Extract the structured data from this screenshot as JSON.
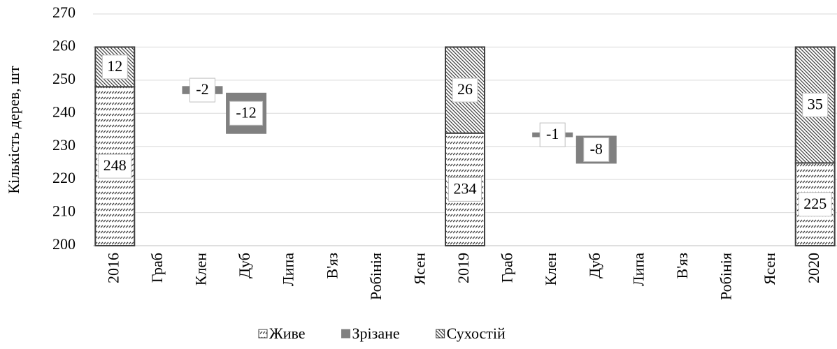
{
  "chart_data": {
    "type": "waterfall",
    "y_label": "Кількість дерев, шт",
    "categories": [
      "2016",
      "Граб",
      "Клен",
      "Дуб",
      "Липа",
      "В'яз",
      "Робінія",
      "Ясен",
      "2019",
      "Граб",
      "Клен",
      "Дуб",
      "Липа",
      "В'яз",
      "Робінія",
      "Ясен",
      "2020"
    ],
    "series": [
      {
        "name": "Живе",
        "color": "#404040",
        "values": [
          248,
          null,
          null,
          null,
          null,
          null,
          null,
          null,
          234,
          null,
          null,
          null,
          null,
          null,
          null,
          null,
          225
        ]
      },
      {
        "name": "Зрізане",
        "color": "#808080",
        "values": [
          null,
          null,
          -2,
          -12,
          null,
          null,
          null,
          null,
          null,
          null,
          -1,
          -8,
          null,
          null,
          null,
          null,
          null
        ]
      },
      {
        "name": "Сухостій",
        "color": "#404040",
        "values": [
          12,
          null,
          null,
          null,
          null,
          null,
          null,
          null,
          26,
          null,
          null,
          null,
          null,
          null,
          null,
          null,
          35
        ]
      }
    ],
    "ylim": [
      200,
      270
    ],
    "yticks": [
      200,
      210,
      220,
      230,
      240,
      250,
      260,
      270
    ],
    "grid": true,
    "legend": "bottom"
  }
}
